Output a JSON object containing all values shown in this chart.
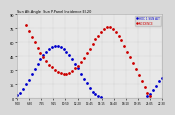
{
  "title": "Sun Alt.Angle  Sun P.Panel Incidence El.20",
  "bg_color": "#d8d8d8",
  "plot_bg_color": "#e8e8e8",
  "grid_color": "#aaaaaa",
  "title_color": "#000000",
  "tick_color": "#000000",
  "series": [
    {
      "label": "HOC 1 SUN ALT",
      "color": "#0000cc",
      "markersize": 2
    },
    {
      "label": "INCIDENCE",
      "color": "#cc0000",
      "markersize": 2
    }
  ],
  "ylim": [
    0,
    90
  ],
  "yticks": [
    0,
    15,
    30,
    45,
    60,
    75,
    90
  ],
  "xlim": [
    0,
    1
  ],
  "sun_alt_x": [
    0.0,
    0.02,
    0.04,
    0.06,
    0.08,
    0.1,
    0.12,
    0.14,
    0.16,
    0.18,
    0.2,
    0.22,
    0.24,
    0.26,
    0.28,
    0.3,
    0.32,
    0.34,
    0.36,
    0.38,
    0.4,
    0.42,
    0.44,
    0.46,
    0.48,
    0.5,
    0.52,
    0.54,
    0.56,
    0.58,
    0.9,
    0.92,
    0.94,
    0.96,
    0.98,
    1.0
  ],
  "sun_alt_y": [
    3,
    6,
    10,
    15,
    20,
    26,
    31,
    37,
    42,
    46,
    50,
    53,
    55,
    56,
    56,
    55,
    53,
    50,
    46,
    42,
    37,
    32,
    26,
    21,
    16,
    11,
    7,
    4,
    2,
    1,
    2,
    5,
    9,
    13,
    18,
    22
  ],
  "incidence_x": [
    0.06,
    0.08,
    0.1,
    0.12,
    0.14,
    0.16,
    0.18,
    0.2,
    0.22,
    0.24,
    0.26,
    0.28,
    0.3,
    0.32,
    0.34,
    0.36,
    0.38,
    0.4,
    0.42,
    0.44,
    0.46,
    0.48,
    0.5,
    0.52,
    0.54,
    0.56,
    0.58,
    0.6,
    0.62,
    0.64,
    0.66,
    0.68,
    0.7,
    0.72,
    0.74,
    0.76,
    0.78,
    0.8,
    0.82,
    0.84,
    0.86,
    0.88,
    0.9,
    0.92
  ],
  "incidence_y": [
    78,
    72,
    66,
    60,
    54,
    49,
    44,
    40,
    36,
    33,
    30,
    28,
    27,
    26,
    26,
    27,
    29,
    32,
    35,
    39,
    43,
    48,
    53,
    58,
    63,
    67,
    71,
    74,
    76,
    76,
    74,
    71,
    67,
    62,
    56,
    50,
    44,
    38,
    31,
    25,
    18,
    12,
    6,
    2
  ],
  "xtick_vals": [
    0.0,
    0.083,
    0.167,
    0.25,
    0.333,
    0.417,
    0.5,
    0.583,
    0.667,
    0.75,
    0.833,
    0.917,
    1.0
  ],
  "xtick_labels": [
    "5:00",
    "6:30",
    "7:55",
    "9:25",
    "10:50",
    "12:20",
    "13:45",
    "15:15",
    "16:40",
    "18:10",
    "19:35",
    "21:05",
    "22:30"
  ]
}
